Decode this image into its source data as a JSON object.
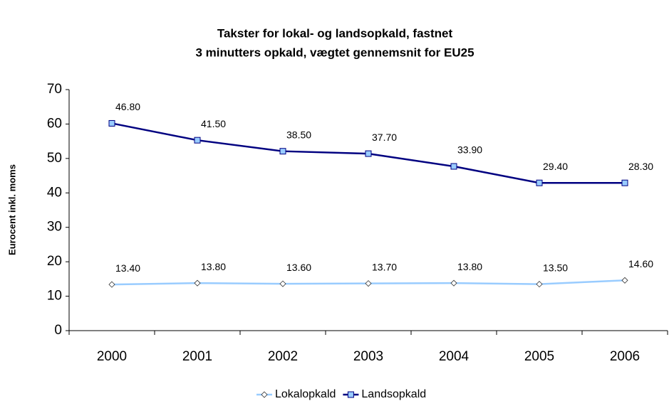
{
  "chart_data": {
    "type": "line",
    "stacked": true,
    "title": "Takster for lokal- og landsopkald, fastnet",
    "subtitle": "3 minutters opkald, vægtet gennemsnit for EU25",
    "ylabel": "Eurocent inkl. moms",
    "categories": [
      "2000",
      "2001",
      "2002",
      "2003",
      "2004",
      "2005",
      "2006"
    ],
    "series": [
      {
        "name": "Lokalopkald",
        "color": "#99ccff",
        "marker": "diamond",
        "values": [
          13.4,
          13.8,
          13.6,
          13.7,
          13.8,
          13.5,
          14.6
        ],
        "value_labels": [
          "13.40",
          "13.80",
          "13.60",
          "13.70",
          "13.80",
          "13.50",
          "14.60"
        ]
      },
      {
        "name": "Landsopkald",
        "color": "#000080",
        "marker": "square",
        "values": [
          46.8,
          41.5,
          38.5,
          37.7,
          33.9,
          29.4,
          28.3
        ],
        "value_labels": [
          "46.80",
          "41.50",
          "38.50",
          "37.70",
          "33.90",
          "29.40",
          "28.30"
        ]
      }
    ],
    "ylim": [
      0,
      70
    ],
    "yticks": [
      0,
      10,
      20,
      30,
      40,
      50,
      60,
      70
    ],
    "grid": false,
    "legend": "bottom"
  }
}
